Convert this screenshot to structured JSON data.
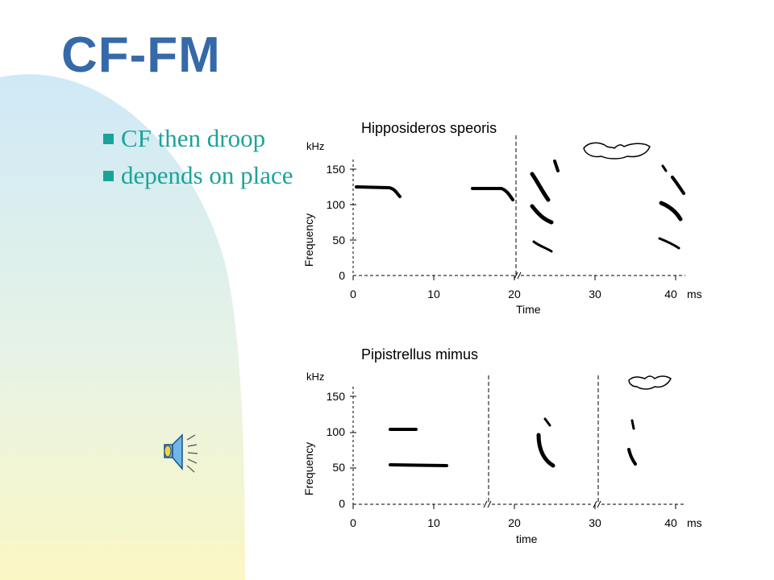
{
  "slide": {
    "title": "CF-FM",
    "bullets": [
      "CF then droop",
      "depends on place"
    ]
  },
  "icons": {
    "sound": "speaker-icon",
    "bat": "bat-silhouette-icon"
  },
  "colors": {
    "title": "#3569a8",
    "bullet_text": "#1aa39a",
    "bg_gradient_top": "#cfe9f7",
    "bg_gradient_bottom": "#fbf7c4"
  },
  "figures": [
    {
      "title": "Hipposideros speoris",
      "y_unit": "kHz",
      "y_label": "Frequency",
      "y_ticks": [
        "150",
        "100",
        "50",
        "0"
      ],
      "x_label": "Time",
      "x_ticks": [
        "0",
        "10",
        "20",
        "30",
        "40"
      ],
      "x_unit": "ms"
    },
    {
      "title": "Pipistrellus mimus",
      "y_unit": "kHz",
      "y_label": "Frequency",
      "y_ticks": [
        "150",
        "100",
        "50",
        "0"
      ],
      "x_label": "time",
      "x_ticks": [
        "0",
        "10",
        "20",
        "30",
        "40"
      ],
      "x_unit": "ms"
    }
  ]
}
